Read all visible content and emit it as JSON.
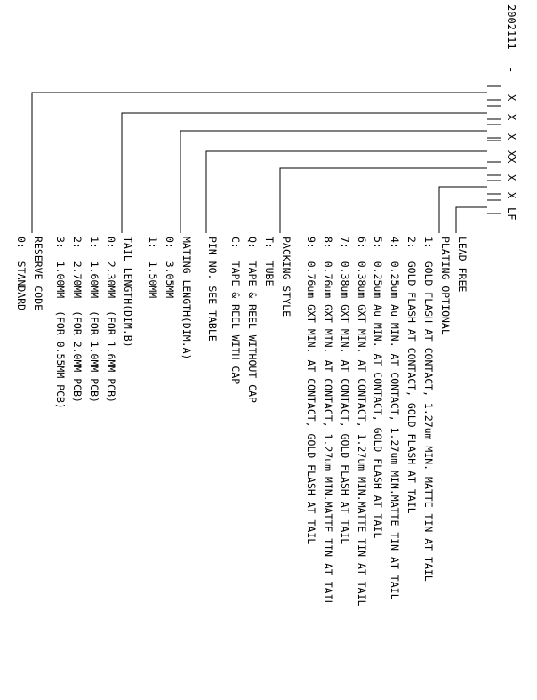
{
  "part_number": {
    "prefix": "2002111",
    "dash": "-",
    "tokens": [
      "X",
      "X",
      "X",
      "XX",
      "X",
      "X",
      "LF"
    ]
  },
  "branches": [
    {
      "id": "lead",
      "title": "LEAD FREE",
      "options": []
    },
    {
      "id": "plating",
      "title": "PLATING OPTIONAL",
      "options": [
        "1:  GOLD FLASH AT CONTACT, 1.27um MIN. MATTE TIN AT TAIL",
        "2:  GOLD FLASH AT CONTACT, GOLD FLASH AT TAIL",
        "4:  0.25um Au MIN. AT CONTACT, 1.27um MIN.MATTE TIN AT TAIL",
        "5:  0.25um Au MIN. AT CONTACT, GOLD FLASH AT TAIL",
        "6:  0.38um GXT MIN. AT CONTACT, 1.27um MIN.MATTE TIN AT TAIL",
        "7:  0.38um GXT MIN. AT CONTACT, GOLD FLASH AT TAIL",
        "8:  0.76um GXT MIN. AT CONTACT, 1.27um MIN.MATTE TIN AT TAIL",
        "9:  0.76um GXT MIN. AT CONTACT, GOLD FLASH AT TAIL"
      ]
    },
    {
      "id": "packing",
      "title": "PACKING STYLE",
      "options": [
        "T:  TUBE",
        "Q:  TAPE & REEL WITHOUT CAP",
        "C:  TAPE & REEL WITH CAP"
      ]
    },
    {
      "id": "pin",
      "title": "PIN NO. SEE TABLE",
      "options": []
    },
    {
      "id": "mating",
      "title": "MATING LENGTH(DIM.A)",
      "options": [
        "0:  3.05MM",
        "1:  1.50MM"
      ]
    },
    {
      "id": "tail",
      "title": "TAIL LENGTH(DIM.B)",
      "options": [
        "0:  2.30MM  (FOR 1.6MM PCB)",
        "1:  1.60MM  (FOR 1.0MM PCB)",
        "2:  2.70MM  (FOR 2.0MM PCB)",
        "3:  1.00MM  (FOR 0.55MM PCB)"
      ]
    },
    {
      "id": "reserve",
      "title": "RESERVE CODE",
      "options": [
        "0:  STANDARD"
      ]
    }
  ]
}
